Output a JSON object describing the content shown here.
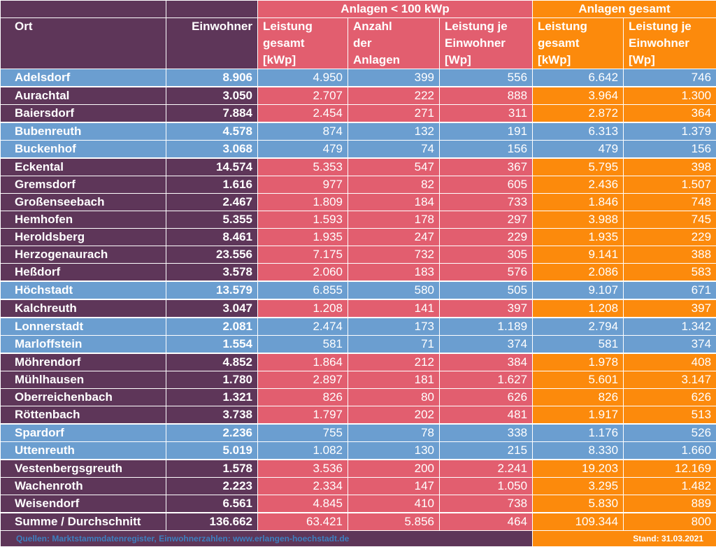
{
  "header": {
    "group_small": "Anlagen < 100 kWp",
    "group_total": "Anlagen gesamt",
    "col_ort": "Ort",
    "col_einwohner": "Einwohner",
    "col_leistung_gesamt": [
      "Leistung",
      "gesamt",
      "[kWp]"
    ],
    "col_anzahl": [
      "Anzahl",
      "der",
      "Anlagen"
    ],
    "col_leistung_je": [
      "Leistung je",
      "Einwohner",
      "[Wp]"
    ],
    "col_total_leistung": [
      "Leistung",
      "gesamt",
      "[kWp]"
    ],
    "col_total_je": [
      "Leistung je",
      "Einwohner",
      "[Wp]"
    ]
  },
  "colors": {
    "purple": "#5e3659",
    "blue": "#6b9ed0",
    "red": "#e25e6f",
    "orange": "#fc8a0c"
  },
  "rows": [
    {
      "ort": "Adelsdorf",
      "einwohner": "8.906",
      "leistung": "4.950",
      "anzahl": "399",
      "je_ew": "556",
      "ges_leistung": "6.642",
      "ges_je_ew": "746",
      "style": "blue"
    },
    {
      "ort": "Aurachtal",
      "einwohner": "3.050",
      "leistung": "2.707",
      "anzahl": "222",
      "je_ew": "888",
      "ges_leistung": "3.964",
      "ges_je_ew": "1.300",
      "style": "normal"
    },
    {
      "ort": "Baiersdorf",
      "einwohner": "7.884",
      "leistung": "2.454",
      "anzahl": "271",
      "je_ew": "311",
      "ges_leistung": "2.872",
      "ges_je_ew": "364",
      "style": "normal"
    },
    {
      "ort": "Bubenreuth",
      "einwohner": "4.578",
      "leistung": "874",
      "anzahl": "132",
      "je_ew": "191",
      "ges_leistung": "6.313",
      "ges_je_ew": "1.379",
      "style": "blue"
    },
    {
      "ort": "Buckenhof",
      "einwohner": "3.068",
      "leistung": "479",
      "anzahl": "74",
      "je_ew": "156",
      "ges_leistung": "479",
      "ges_je_ew": "156",
      "style": "blue"
    },
    {
      "ort": "Eckental",
      "einwohner": "14.574",
      "leistung": "5.353",
      "anzahl": "547",
      "je_ew": "367",
      "ges_leistung": "5.795",
      "ges_je_ew": "398",
      "style": "normal"
    },
    {
      "ort": "Gremsdorf",
      "einwohner": "1.616",
      "leistung": "977",
      "anzahl": "82",
      "je_ew": "605",
      "ges_leistung": "2.436",
      "ges_je_ew": "1.507",
      "style": "normal"
    },
    {
      "ort": "Großenseebach",
      "einwohner": "2.467",
      "leistung": "1.809",
      "anzahl": "184",
      "je_ew": "733",
      "ges_leistung": "1.846",
      "ges_je_ew": "748",
      "style": "normal"
    },
    {
      "ort": "Hemhofen",
      "einwohner": "5.355",
      "leistung": "1.593",
      "anzahl": "178",
      "je_ew": "297",
      "ges_leistung": "3.988",
      "ges_je_ew": "745",
      "style": "normal"
    },
    {
      "ort": "Heroldsberg",
      "einwohner": "8.461",
      "leistung": "1.935",
      "anzahl": "247",
      "je_ew": "229",
      "ges_leistung": "1.935",
      "ges_je_ew": "229",
      "style": "normal"
    },
    {
      "ort": "Herzogenaurach",
      "einwohner": "23.556",
      "leistung": "7.175",
      "anzahl": "732",
      "je_ew": "305",
      "ges_leistung": "9.141",
      "ges_je_ew": "388",
      "style": "normal"
    },
    {
      "ort": "Heßdorf",
      "einwohner": "3.578",
      "leistung": "2.060",
      "anzahl": "183",
      "je_ew": "576",
      "ges_leistung": "2.086",
      "ges_je_ew": "583",
      "style": "normal"
    },
    {
      "ort": "Höchstadt",
      "einwohner": "13.579",
      "leistung": "6.855",
      "anzahl": "580",
      "je_ew": "505",
      "ges_leistung": "9.107",
      "ges_je_ew": "671",
      "style": "blue"
    },
    {
      "ort": "Kalchreuth",
      "einwohner": "3.047",
      "leistung": "1.208",
      "anzahl": "141",
      "je_ew": "397",
      "ges_leistung": "1.208",
      "ges_je_ew": "397",
      "style": "normal"
    },
    {
      "ort": "Lonnerstadt",
      "einwohner": "2.081",
      "leistung": "2.474",
      "anzahl": "173",
      "je_ew": "1.189",
      "ges_leistung": "2.794",
      "ges_je_ew": "1.342",
      "style": "blue"
    },
    {
      "ort": "Marloffstein",
      "einwohner": "1.554",
      "leistung": "581",
      "anzahl": "71",
      "je_ew": "374",
      "ges_leistung": "581",
      "ges_je_ew": "374",
      "style": "blue"
    },
    {
      "ort": "Möhrendorf",
      "einwohner": "4.852",
      "leistung": "1.864",
      "anzahl": "212",
      "je_ew": "384",
      "ges_leistung": "1.978",
      "ges_je_ew": "408",
      "style": "normal"
    },
    {
      "ort": "Mühlhausen",
      "einwohner": "1.780",
      "leistung": "2.897",
      "anzahl": "181",
      "je_ew": "1.627",
      "ges_leistung": "5.601",
      "ges_je_ew": "3.147",
      "style": "normal"
    },
    {
      "ort": "Oberreichenbach",
      "einwohner": "1.321",
      "leistung": "826",
      "anzahl": "80",
      "je_ew": "626",
      "ges_leistung": "826",
      "ges_je_ew": "626",
      "style": "normal"
    },
    {
      "ort": "Röttenbach",
      "einwohner": "3.738",
      "leistung": "1.797",
      "anzahl": "202",
      "je_ew": "481",
      "ges_leistung": "1.917",
      "ges_je_ew": "513",
      "style": "normal"
    },
    {
      "ort": "Spardorf",
      "einwohner": "2.236",
      "leistung": "755",
      "anzahl": "78",
      "je_ew": "338",
      "ges_leistung": "1.176",
      "ges_je_ew": "526",
      "style": "blue"
    },
    {
      "ort": "Uttenreuth",
      "einwohner": "5.019",
      "leistung": "1.082",
      "anzahl": "130",
      "je_ew": "215",
      "ges_leistung": "8.330",
      "ges_je_ew": "1.660",
      "style": "blue"
    },
    {
      "ort": "Vestenbergsgreuth",
      "einwohner": "1.578",
      "leistung": "3.536",
      "anzahl": "200",
      "je_ew": "2.241",
      "ges_leistung": "19.203",
      "ges_je_ew": "12.169",
      "style": "normal"
    },
    {
      "ort": "Wachenroth",
      "einwohner": "2.223",
      "leistung": "2.334",
      "anzahl": "147",
      "je_ew": "1.050",
      "ges_leistung": "3.295",
      "ges_je_ew": "1.482",
      "style": "normal"
    },
    {
      "ort": "Weisendorf",
      "einwohner": "6.561",
      "leistung": "4.845",
      "anzahl": "410",
      "je_ew": "738",
      "ges_leistung": "5.830",
      "ges_je_ew": "889",
      "style": "normal"
    }
  ],
  "summary": {
    "label": "Summe / Durchschnitt",
    "einwohner": "136.662",
    "leistung": "63.421",
    "anzahl": "5.856",
    "je_ew": "464",
    "ges_leistung": "109.344",
    "ges_je_ew": "800"
  },
  "footer": {
    "source": "Quellen: Marktstammdatenregister, Einwohnerzahlen: www.erlangen-hoechstadt.de",
    "date": "Stand: 31.03.2021"
  }
}
